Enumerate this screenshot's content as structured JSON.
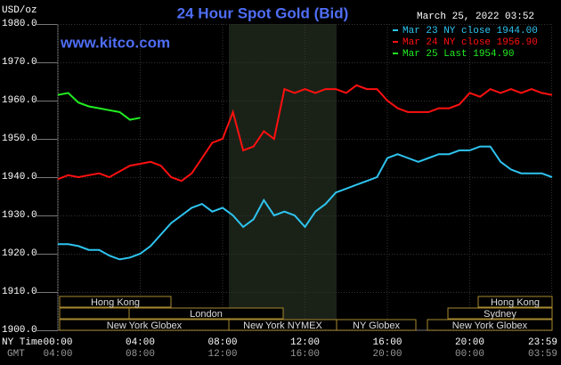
{
  "chart_data": {
    "type": "line",
    "title": "24 Hour Spot Gold (Bid)",
    "timestamp": "March 25, 2022 03:52",
    "website": "www.kitco.com",
    "y_unit": "USD/oz",
    "x_row_label": "NY Time",
    "x2_row_label": "GMT",
    "x": [
      0,
      0.5,
      1,
      1.5,
      2,
      2.5,
      3,
      3.5,
      4,
      4.5,
      5,
      5.5,
      6,
      6.5,
      7,
      7.5,
      8,
      8.5,
      9,
      9.5,
      10,
      10.5,
      11,
      11.5,
      12,
      12.5,
      13,
      13.5,
      14,
      14.5,
      15,
      15.5,
      16,
      16.5,
      17,
      17.5,
      18,
      18.5,
      19,
      19.5,
      20,
      20.5,
      21,
      21.5,
      22,
      22.5,
      23,
      23.5,
      24
    ],
    "xlim": [
      0,
      24
    ],
    "xticks": [
      {
        "value": 0,
        "label": "00:00"
      },
      {
        "value": 4,
        "label": "04:00"
      },
      {
        "value": 8,
        "label": "08:00"
      },
      {
        "value": 12,
        "label": "12:00"
      },
      {
        "value": 16,
        "label": "16:00"
      },
      {
        "value": 20,
        "label": "20:00"
      },
      {
        "value": 23.983,
        "label": "23:59"
      }
    ],
    "x2_tick_labels": [
      "04:00",
      "08:00",
      "12:00",
      "16:00",
      "20:00",
      "00:00",
      "03:59"
    ],
    "ylim": [
      1900,
      1980
    ],
    "yticks": [
      {
        "value": 1900,
        "label": "1900.0"
      },
      {
        "value": 1910,
        "label": "1910.0"
      },
      {
        "value": 1920,
        "label": "1920.0"
      },
      {
        "value": 1930,
        "label": "1930.0"
      },
      {
        "value": 1940,
        "label": "1940.0"
      },
      {
        "value": 1950,
        "label": "1950.0"
      },
      {
        "value": 1960,
        "label": "1960.0"
      },
      {
        "value": 1970,
        "label": "1970.0"
      },
      {
        "value": 1980,
        "label": "1980.0"
      }
    ],
    "grid": true,
    "legend": "top-right",
    "series": [
      {
        "name": "Mar 23 NY close 1944.00",
        "color": "#2ec4f0",
        "values": [
          1922.5,
          1922.5,
          1922,
          1921,
          1921,
          1919.5,
          1918.5,
          1919,
          1920,
          1922,
          1925,
          1928,
          1930,
          1932,
          1933,
          1931,
          1932,
          1930,
          1927,
          1929,
          1934,
          1930,
          1931,
          1930,
          1927,
          1931,
          1933,
          1936,
          1937,
          1938,
          1939,
          1940,
          1945,
          1946,
          1945,
          1944,
          1945,
          1946,
          1946,
          1947,
          1947,
          1948,
          1948,
          1944,
          1942,
          1941,
          1941,
          1941,
          1940
        ]
      },
      {
        "name": "Mar 24 NY close 1956.90",
        "color": "#ff1010",
        "values": [
          1939.5,
          1940.5,
          1940,
          1940.5,
          1941,
          1940,
          1941.5,
          1943,
          1943.5,
          1944,
          1943,
          1940,
          1939,
          1941,
          1945,
          1949,
          1950,
          1957,
          1947,
          1948,
          1952,
          1950,
          1963,
          1962,
          1963,
          1962,
          1963,
          1963,
          1962,
          1964,
          1963,
          1963,
          1960,
          1958,
          1957,
          1957,
          1957,
          1958,
          1958,
          1959,
          1962,
          1961,
          1963,
          1962,
          1963,
          1962,
          1963,
          1962,
          1961.5
        ]
      },
      {
        "name": "Mar 25 Last 1954.90",
        "color": "#22ee22",
        "values": [
          1961.5,
          1962,
          1959.5,
          1958.5,
          1958,
          1957.5,
          1957,
          1955,
          1955.5,
          null,
          null,
          null,
          null,
          null,
          null,
          null,
          null,
          null,
          null,
          null,
          null,
          null,
          null,
          null,
          null,
          null,
          null,
          null,
          null,
          null,
          null,
          null,
          null,
          null,
          null,
          null,
          null,
          null,
          null,
          null,
          null,
          null,
          null,
          null,
          null,
          null,
          null,
          null,
          null
        ]
      }
    ],
    "sessions": [
      "Hong Kong",
      "London",
      "New York Globex",
      "New York NYMEX",
      "NY Globex",
      "Hong Kong",
      "Sydney",
      "New York Globex"
    ]
  }
}
